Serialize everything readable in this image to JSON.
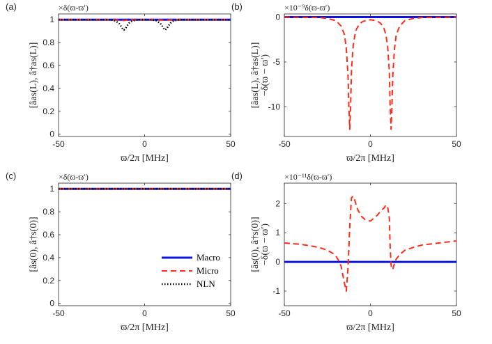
{
  "series_styles": {
    "Macro": {
      "color": "#0a14e0",
      "dash": "",
      "width": 3
    },
    "Micro": {
      "color": "#ff2a1a",
      "dash": "8,5",
      "width": 2
    },
    "NLN": {
      "color": "#000000",
      "dash": "1.5,2.5",
      "width": 2.5
    }
  },
  "legend": {
    "entries": [
      "Macro",
      "Micro",
      "NLN"
    ]
  },
  "chart_data": [
    {
      "type": "line",
      "panel_label": "(a)",
      "corner_note": "×δ(ϖ-ϖ′)",
      "ylabel": "[âas(L), â†as(L)]",
      "ylabel2": "",
      "xlabel": "ϖ/2π [MHz]",
      "xlim": [
        -50,
        50
      ],
      "ylim": [
        -0.02,
        1.05
      ],
      "xticks": [
        -50,
        0,
        50
      ],
      "yticks": [
        0,
        0.2,
        0.4,
        0.6,
        0.8,
        1
      ],
      "ytick_labels": [
        "0",
        "0.2",
        "0.4",
        "0.6",
        "0.8",
        "1"
      ],
      "series": [
        {
          "name": "Macro",
          "x": [
            -50,
            50
          ],
          "y": [
            1,
            1
          ]
        },
        {
          "name": "Micro",
          "x": [
            -50,
            -20,
            -15,
            -13,
            -12,
            -11,
            -9,
            -4,
            0,
            4,
            9,
            11,
            12,
            13,
            15,
            20,
            50
          ],
          "y": [
            1,
            1,
            0.999,
            0.995,
            0.992,
            0.995,
            0.999,
            1,
            1,
            1,
            0.999,
            0.995,
            0.992,
            0.995,
            0.999,
            1,
            1
          ]
        },
        {
          "name": "NLN",
          "x": [
            -50,
            -20,
            -17,
            -15,
            -14,
            -13,
            -12,
            -11,
            -10,
            -9,
            -7,
            -4,
            0,
            4,
            7,
            9,
            10,
            11,
            12,
            13,
            14,
            15,
            17,
            20,
            50
          ],
          "y": [
            1,
            1,
            0.99,
            0.97,
            0.95,
            0.925,
            0.91,
            0.925,
            0.95,
            0.97,
            0.99,
            1,
            1,
            1,
            0.99,
            0.97,
            0.95,
            0.925,
            0.91,
            0.925,
            0.95,
            0.97,
            0.99,
            1,
            1
          ]
        }
      ]
    },
    {
      "type": "line",
      "panel_label": "(b)",
      "corner_note": "×10⁻⁹δ(ϖ-ϖ′)",
      "ylabel": "[âas(L), â†as(L)]",
      "ylabel2": "−δ(ϖ − ϖ′)",
      "xlabel": "ϖ/2π [MHz]",
      "xlim": [
        -50,
        50
      ],
      "ylim": [
        -13.3,
        0.35
      ],
      "xticks": [
        -50,
        0,
        50
      ],
      "yticks": [
        0,
        -5,
        -10
      ],
      "ytick_labels": [
        "0",
        "-5",
        "-10"
      ],
      "series": [
        {
          "name": "Macro",
          "x": [
            -50,
            50
          ],
          "y": [
            0,
            0
          ]
        },
        {
          "name": "Micro",
          "x": [
            -50,
            -30,
            -25,
            -20,
            -17,
            -15,
            -14,
            -13,
            -12.5,
            -12,
            -11.5,
            -11,
            -10,
            -9,
            -8,
            -6,
            -4,
            -2,
            0,
            2,
            4,
            6,
            8,
            9,
            10,
            11,
            11.5,
            12,
            12.5,
            13,
            14,
            15,
            17,
            20,
            25,
            30,
            50
          ],
          "y": [
            0,
            -0.05,
            -0.15,
            -0.4,
            -1.0,
            -2.0,
            -3.5,
            -6.5,
            -10,
            -12.5,
            -10,
            -6,
            -3.2,
            -2.0,
            -1.3,
            -0.7,
            -0.45,
            -0.35,
            -0.3,
            -0.35,
            -0.45,
            -0.7,
            -1.3,
            -2.0,
            -3.2,
            -6,
            -10,
            -12.5,
            -10,
            -6.5,
            -3.5,
            -2.0,
            -1.0,
            -0.4,
            -0.15,
            -0.05,
            0
          ]
        }
      ]
    },
    {
      "type": "line",
      "panel_label": "(c)",
      "corner_note": "×δ(ϖ-ϖ′)",
      "ylabel": "[âs(0), â†s(0)]",
      "ylabel2": "",
      "xlabel": "ϖ/2π [MHz]",
      "xlim": [
        -50,
        50
      ],
      "ylim": [
        -0.02,
        1.05
      ],
      "xticks": [
        -50,
        0,
        50
      ],
      "yticks": [
        0,
        0.2,
        0.4,
        0.6,
        0.8,
        1
      ],
      "ytick_labels": [
        "0",
        "0.2",
        "0.4",
        "0.6",
        "0.8",
        "1"
      ],
      "series": [
        {
          "name": "Macro",
          "x": [
            -50,
            50
          ],
          "y": [
            1,
            1
          ]
        },
        {
          "name": "Micro",
          "x": [
            -50,
            50
          ],
          "y": [
            1,
            1
          ]
        },
        {
          "name": "NLN",
          "x": [
            -50,
            50
          ],
          "y": [
            1,
            1
          ]
        }
      ]
    },
    {
      "type": "line",
      "panel_label": "(d)",
      "corner_note": "×10⁻¹¹δ(ϖ-ϖ′)",
      "ylabel": "[âs(0), â†s(0)]",
      "ylabel2": "−δ(ϖ − ϖ′)",
      "xlabel": "ϖ/2π [MHz]",
      "xlim": [
        -50,
        50
      ],
      "ylim": [
        -1.5,
        2.7
      ],
      "xticks": [
        -50,
        0,
        50
      ],
      "yticks": [
        -1,
        0,
        1,
        2
      ],
      "ytick_labels": [
        "-1",
        "0",
        "1",
        "2"
      ],
      "series": [
        {
          "name": "Macro",
          "x": [
            -50,
            50
          ],
          "y": [
            0,
            0
          ]
        },
        {
          "name": "Micro",
          "x": [
            -50,
            -40,
            -30,
            -25,
            -22,
            -20,
            -18,
            -17,
            -16,
            -15,
            -14,
            -13,
            -12,
            -11,
            -10,
            -9,
            -8,
            -7,
            -6,
            -5,
            -3,
            0,
            2,
            4,
            6,
            8,
            9,
            10,
            11,
            11.5,
            12,
            12.5,
            13,
            14,
            15,
            17,
            20,
            25,
            30,
            40,
            50
          ],
          "y": [
            0.65,
            0.6,
            0.5,
            0.4,
            0.3,
            0.2,
            0.0,
            -0.15,
            -0.45,
            -0.75,
            -1.0,
            -0.2,
            1.2,
            2.2,
            2.25,
            2.1,
            1.9,
            1.75,
            1.65,
            1.55,
            1.45,
            1.4,
            1.5,
            1.6,
            1.75,
            1.85,
            1.95,
            1.9,
            1.5,
            0.5,
            -0.1,
            -0.25,
            -0.25,
            -0.05,
            0.1,
            0.25,
            0.4,
            0.5,
            0.58,
            0.65,
            0.72
          ]
        }
      ]
    }
  ]
}
